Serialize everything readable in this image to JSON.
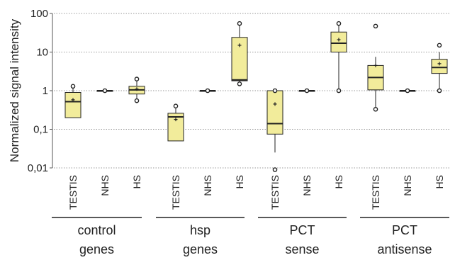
{
  "chart_data": {
    "type": "box",
    "ylabel": "Normalized signal intensity",
    "yscale": "log",
    "ylim": [
      0.01,
      100
    ],
    "ytick_labels": [
      "0,01",
      "0,1",
      "1",
      "10",
      "100"
    ],
    "ytick_values": [
      0.01,
      0.1,
      1,
      10,
      100
    ],
    "grid": "horizontal dotted",
    "box_color": "#f2ec9b",
    "groups": [
      {
        "label_line1": "control",
        "label_line2": "genes",
        "boxes": [
          {
            "category": "TESTIS",
            "whisker_low": 0.2,
            "q1": 0.2,
            "median": 0.52,
            "q3": 0.9,
            "whisker_high": 1.3,
            "mean": 0.58,
            "outliers": [
              1.3
            ]
          },
          {
            "category": "NHS",
            "whisker_low": 1,
            "q1": 1,
            "median": 1,
            "q3": 1,
            "whisker_high": 1,
            "mean": 1,
            "outliers": [
              1
            ]
          },
          {
            "category": "HS",
            "whisker_low": 0.55,
            "q1": 0.82,
            "median": 1.05,
            "q3": 1.3,
            "whisker_high": 2.0,
            "mean": 1.1,
            "outliers": [
              0.55,
              2.0
            ]
          }
        ]
      },
      {
        "label_line1": "hsp",
        "label_line2": "genes",
        "boxes": [
          {
            "category": "TESTIS",
            "whisker_low": 0.05,
            "q1": 0.05,
            "median": 0.21,
            "q3": 0.26,
            "whisker_high": 0.4,
            "mean": 0.18,
            "outliers": [
              0.4
            ]
          },
          {
            "category": "NHS",
            "whisker_low": 1,
            "q1": 1,
            "median": 1,
            "q3": 1,
            "whisker_high": 1,
            "mean": 1,
            "outliers": [
              1
            ]
          },
          {
            "category": "HS",
            "whisker_low": 1.5,
            "q1": 1.8,
            "median": 1.9,
            "q3": 24,
            "whisker_high": 55,
            "mean": 15,
            "outliers": [
              1.5,
              55
            ]
          }
        ]
      },
      {
        "label_line1": "PCT",
        "label_line2": "sense",
        "boxes": [
          {
            "category": "TESTIS",
            "whisker_low": 0.025,
            "q1": 0.075,
            "median": 0.14,
            "q3": 1.0,
            "whisker_high": 1.0,
            "mean": 0.45,
            "outliers": [
              0.009,
              1.0
            ]
          },
          {
            "category": "NHS",
            "whisker_low": 1,
            "q1": 1,
            "median": 1,
            "q3": 1,
            "whisker_high": 1,
            "mean": 1,
            "outliers": [
              1
            ]
          },
          {
            "category": "HS",
            "whisker_low": 1.0,
            "q1": 10,
            "median": 17,
            "q3": 33,
            "whisker_high": 55,
            "mean": 21,
            "outliers": [
              1.0,
              55
            ]
          }
        ]
      },
      {
        "label_line1": "PCT",
        "label_line2": "antisense",
        "boxes": [
          {
            "category": "TESTIS",
            "whisker_low": 0.33,
            "q1": 1.05,
            "median": 2.2,
            "q3": 4.5,
            "whisker_high": 7.5,
            "mean": 4.5,
            "outliers": [
              0.33,
              47
            ]
          },
          {
            "category": "NHS",
            "whisker_low": 1,
            "q1": 1,
            "median": 1,
            "q3": 1,
            "whisker_high": 1,
            "mean": 1,
            "outliers": [
              1
            ]
          },
          {
            "category": "HS",
            "whisker_low": 1.0,
            "q1": 2.8,
            "median": 4.0,
            "q3": 6.5,
            "whisker_high": 10,
            "mean": 5.0,
            "outliers": [
              1.0,
              15
            ]
          }
        ]
      }
    ]
  }
}
